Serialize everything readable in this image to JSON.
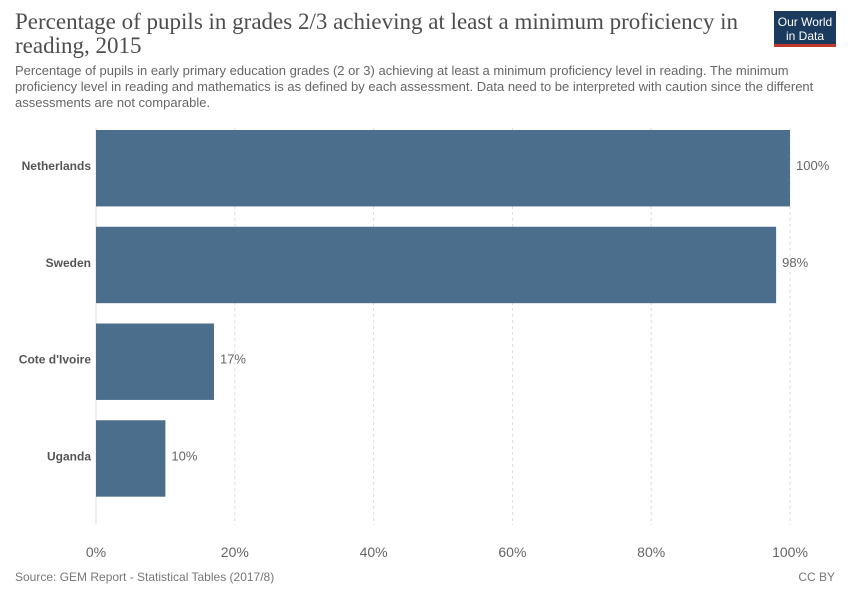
{
  "header": {
    "title": "Percentage of pupils in grades 2/3 achieving at least a minimum proficiency in reading, 2015",
    "subtitle": "Percentage of pupils in early primary education grades (2 or 3) achieving at least a minimum proficiency level in reading. The minimum proficiency level in reading and mathematics is as defined by each assessment. Data need to be interpreted with caution since the different assessments are not comparable."
  },
  "logo": {
    "line1": "Our World",
    "line2": "in Data"
  },
  "footer": {
    "source": "Source: GEM Report - Statistical Tables (2017/8)",
    "license": "CC BY"
  },
  "colors": {
    "bar": "#4c6e8d",
    "grid": "#dddddd",
    "text": "#555555"
  },
  "chart_data": {
    "type": "bar",
    "orientation": "horizontal",
    "categories": [
      "Netherlands",
      "Sweden",
      "Cote d'Ivoire",
      "Uganda"
    ],
    "values": [
      100,
      98,
      17,
      10
    ],
    "value_labels": [
      "100%",
      "98%",
      "17%",
      "10%"
    ],
    "xlim": [
      0,
      100
    ],
    "x_ticks": [
      0,
      20,
      40,
      60,
      80,
      100
    ],
    "x_tick_labels": [
      "0%",
      "20%",
      "40%",
      "60%",
      "80%",
      "100%"
    ],
    "grid": "vertical dashed",
    "legend": "none"
  }
}
